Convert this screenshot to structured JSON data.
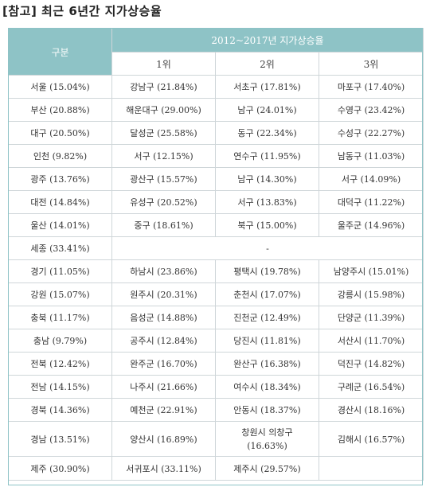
{
  "title": "[참고] 최근 6년간 지가상승율",
  "header": {
    "col_label": "구분",
    "period_label": "2012~2017년 지가상승율",
    "ranks": [
      "1위",
      "2위",
      "3위"
    ]
  },
  "rows": [
    {
      "region": "서울 (15.04%)",
      "c1": "강남구 (21.84%)",
      "c2": "서초구 (17.81%)",
      "c3": "마포구 (17.40%)"
    },
    {
      "region": "부산 (20.88%)",
      "c1": "해운대구 (29.00%)",
      "c2": "남구 (24.01%)",
      "c3": "수영구 (23.42%)"
    },
    {
      "region": "대구 (20.50%)",
      "c1": "달성군 (25.58%)",
      "c2": "동구 (22.34%)",
      "c3": "수성구 (22.27%)"
    },
    {
      "region": "인천 (9.82%)",
      "c1": "서구 (12.15%)",
      "c2": "연수구 (11.95%)",
      "c3": "남동구 (11.03%)"
    },
    {
      "region": "광주 (13.76%)",
      "c1": "광산구 (15.57%)",
      "c2": "남구 (14.30%)",
      "c3": "서구 (14.09%)"
    },
    {
      "region": "대전 (14.84%)",
      "c1": "유성구 (20.52%)",
      "c2": "서구 (13.83%)",
      "c3": "대덕구 (11.22%)"
    },
    {
      "region": "울산 (14.01%)",
      "c1": "중구 (18.61%)",
      "c2": "북구 (15.00%)",
      "c3": "울주군 (14.96%)"
    },
    {
      "region": "세종 (33.41%)",
      "merged": "-"
    },
    {
      "region": "경기 (11.05%)",
      "c1": "하남시 (23.86%)",
      "c2": "평택시 (19.78%)",
      "c3": "남양주시 (15.01%)"
    },
    {
      "region": "강원 (15.07%)",
      "c1": "원주시 (20.31%)",
      "c2": "춘천시 (17.07%)",
      "c3": "강릉시 (15.98%)"
    },
    {
      "region": "충북 (11.17%)",
      "c1": "음성군 (14.88%)",
      "c2": "진천군 (12.49%)",
      "c3": "단양군 (11.39%)"
    },
    {
      "region": "충남 (9.79%)",
      "c1": "공주시 (12.84%)",
      "c2": "당진시 (11.81%)",
      "c3": "서산시 (11.70%)"
    },
    {
      "region": "전북 (12.42%)",
      "c1": "완주군 (16.70%)",
      "c2": "완산구 (16.38%)",
      "c3": "덕진구 (14.82%)"
    },
    {
      "region": "전남 (14.15%)",
      "c1": "나주시 (21.66%)",
      "c2": "여수시 (18.34%)",
      "c3": "구례군 (16.54%)"
    },
    {
      "region": "경북 (14.36%)",
      "c1": "예천군 (22.91%)",
      "c2": "안동시 (18.37%)",
      "c3": "경산시 (18.16%)"
    },
    {
      "region": "경남 (13.51%)",
      "c1": "양산시 (16.89%)",
      "c2a": "창원시 의창구",
      "c2b": "(16.63%)",
      "c3": "김해시 (16.57%)"
    },
    {
      "region": "제주 (30.90%)",
      "c1": "서귀포시 (33.11%)",
      "c2": "제주시 (29.57%)",
      "c3": ""
    }
  ]
}
